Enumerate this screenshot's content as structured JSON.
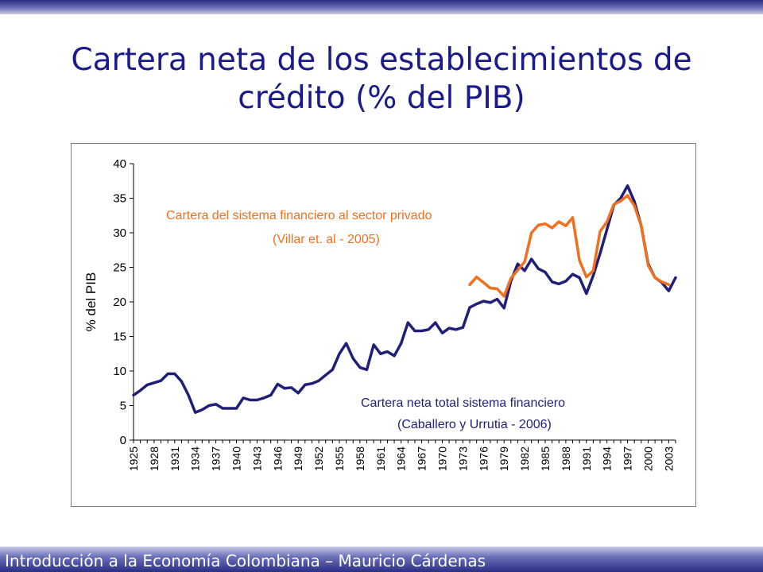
{
  "slide": {
    "title_line1": "Cartera neta de los establecimientos de",
    "title_line2": "crédito (% del PIB)",
    "footer": "Introducción a la Economía Colombiana – Mauricio Cárdenas"
  },
  "colors": {
    "title": "#1a1a8c",
    "series_total": "#1f1f7a",
    "series_privado": "#f07020"
  },
  "chart_data": {
    "type": "line",
    "title": "",
    "xlabel": "",
    "ylabel": "% del PIB",
    "ylim": [
      0,
      40
    ],
    "yticks": [
      0,
      5,
      10,
      15,
      20,
      25,
      30,
      35,
      40
    ],
    "xlim": [
      1925,
      2004
    ],
    "xticks": [
      1925,
      1928,
      1931,
      1934,
      1937,
      1940,
      1943,
      1946,
      1949,
      1952,
      1955,
      1958,
      1961,
      1964,
      1967,
      1970,
      1973,
      1976,
      1979,
      1982,
      1985,
      1988,
      1991,
      1994,
      1997,
      2000,
      2003
    ],
    "grid": false,
    "legend": "inline-annotations",
    "series": [
      {
        "name": "Cartera neta total sistema financiero (Caballero y Urrutia - 2006)",
        "label_line1": "Cartera neta total sistema financiero",
        "label_line2": "(Caballero y Urrutia - 2006)",
        "x": [
          1925,
          1926,
          1927,
          1928,
          1929,
          1930,
          1931,
          1932,
          1933,
          1934,
          1935,
          1936,
          1937,
          1938,
          1939,
          1940,
          1941,
          1942,
          1943,
          1944,
          1945,
          1946,
          1947,
          1948,
          1949,
          1950,
          1951,
          1952,
          1953,
          1954,
          1955,
          1956,
          1957,
          1958,
          1959,
          1960,
          1961,
          1962,
          1963,
          1964,
          1965,
          1966,
          1967,
          1968,
          1969,
          1970,
          1971,
          1972,
          1973,
          1974,
          1975,
          1976,
          1977,
          1978,
          1979,
          1980,
          1981,
          1982,
          1983,
          1984,
          1985,
          1986,
          1987,
          1988,
          1989,
          1990,
          1991,
          1992,
          1993,
          1994,
          1995,
          1996,
          1997,
          1998,
          1999,
          2000,
          2001,
          2002,
          2003,
          2004
        ],
        "values": [
          6.5,
          7.2,
          8.0,
          8.3,
          8.6,
          9.6,
          9.6,
          8.5,
          6.5,
          4.0,
          4.4,
          5.0,
          5.2,
          4.6,
          4.6,
          4.6,
          6.1,
          5.8,
          5.8,
          6.1,
          6.5,
          8.1,
          7.5,
          7.6,
          6.8,
          8.0,
          8.2,
          8.6,
          9.4,
          10.2,
          12.5,
          14.0,
          11.8,
          10.5,
          10.2,
          13.8,
          12.5,
          12.8,
          12.2,
          14.0,
          17.0,
          15.8,
          15.8,
          16.0,
          17.0,
          15.5,
          16.2,
          16.0,
          16.3,
          19.2,
          19.7,
          20.1,
          19.9,
          20.4,
          19.1,
          23.0,
          25.5,
          24.5,
          26.2,
          24.8,
          24.3,
          22.9,
          22.6,
          23.0,
          24.0,
          23.5,
          21.2,
          23.8,
          27.0,
          30.5,
          34.0,
          35.0,
          36.8,
          34.5,
          31.0,
          25.5,
          23.5,
          22.8,
          21.6,
          23.5
        ]
      },
      {
        "name": "Cartera del sistema financiero al sector privado (Villar et. al - 2005)",
        "label_line1": "Cartera del sistema financiero al sector privado",
        "label_line2": "(Villar et. al - 2005)",
        "x": [
          1974,
          1975,
          1976,
          1977,
          1978,
          1979,
          1980,
          1981,
          1982,
          1983,
          1984,
          1985,
          1986,
          1987,
          1988,
          1989,
          1990,
          1991,
          1992,
          1993,
          1994,
          1995,
          1996,
          1997,
          1998,
          1999,
          2000,
          2001,
          2002,
          2003
        ],
        "values": [
          22.5,
          23.6,
          22.8,
          22.0,
          21.9,
          20.8,
          23.4,
          24.6,
          25.8,
          30.0,
          31.1,
          31.3,
          30.7,
          31.6,
          31.0,
          32.2,
          26.0,
          23.6,
          24.5,
          30.2,
          31.6,
          34.1,
          34.6,
          35.4,
          33.9,
          31.0,
          25.3,
          23.5,
          22.9,
          22.5
        ]
      }
    ]
  }
}
